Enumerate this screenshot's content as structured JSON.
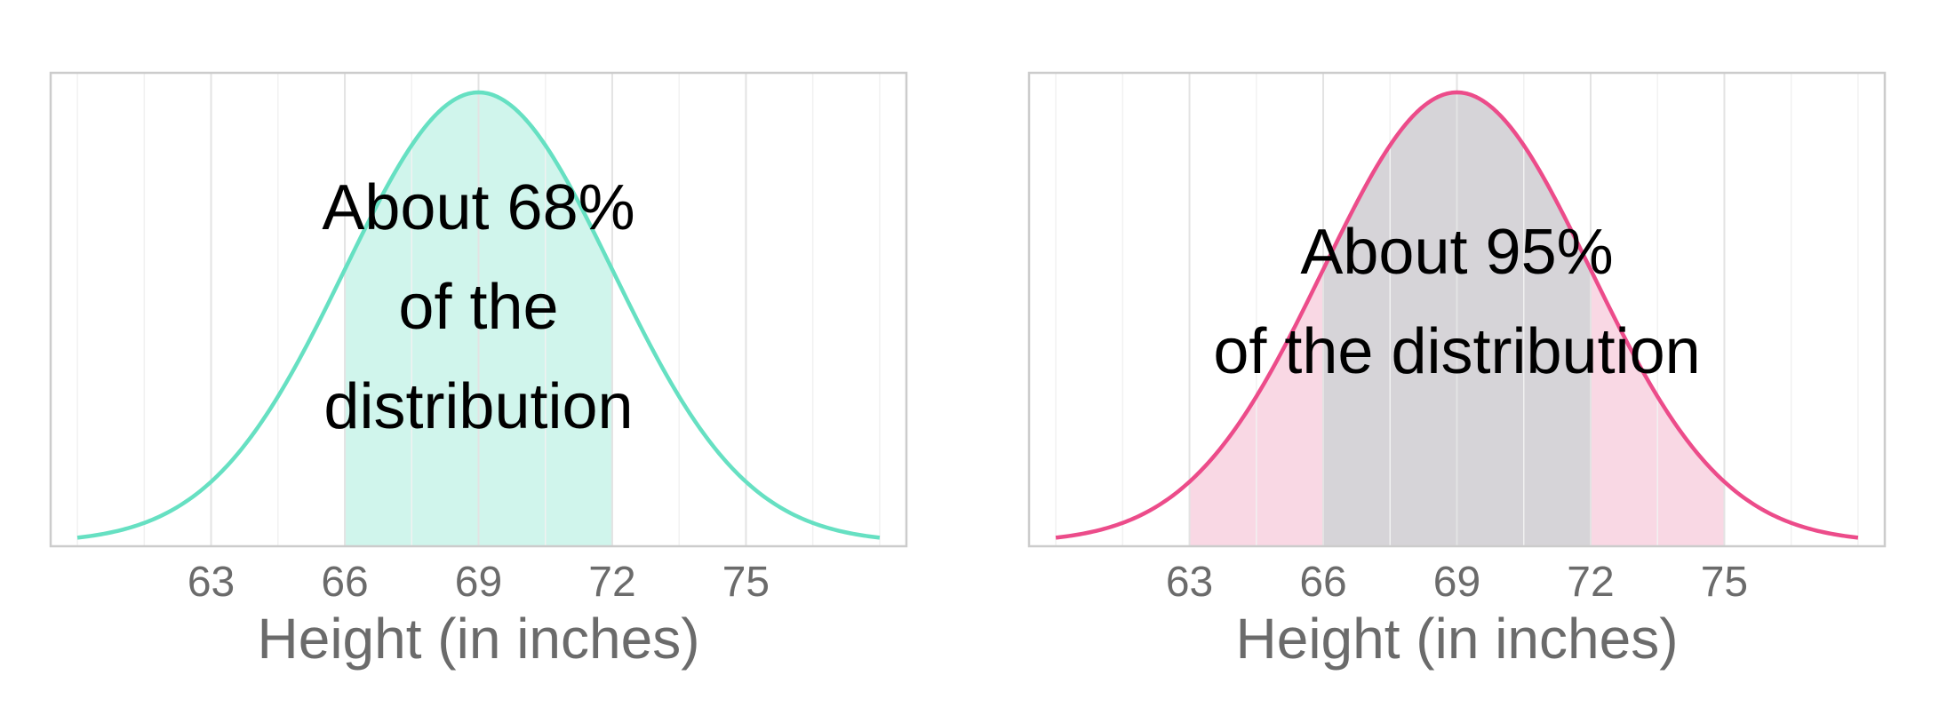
{
  "chart_data": [
    {
      "type": "area",
      "distribution": "normal",
      "mean": 69,
      "sd": 3,
      "x_range": [
        60,
        78
      ],
      "xlim": [
        59.4,
        78.6
      ],
      "xticks": [
        63,
        66,
        69,
        72,
        75
      ],
      "tick_labels": [
        "63",
        "66",
        "69",
        "72",
        "75"
      ],
      "xlabel": "Height (in inches)",
      "ylabel": "",
      "grid": true,
      "shaded_regions": [
        {
          "from": 66,
          "to": 72,
          "color": "#d0f5ec"
        }
      ],
      "annotation": [
        "About 68%",
        "of the",
        "distribution"
      ],
      "curve_color": "#66e0c2",
      "frame_color": "#cccccc"
    },
    {
      "type": "area",
      "distribution": "normal",
      "mean": 69,
      "sd": 3,
      "x_range": [
        60,
        78
      ],
      "xlim": [
        59.4,
        78.6
      ],
      "xticks": [
        63,
        66,
        69,
        72,
        75
      ],
      "tick_labels": [
        "63",
        "66",
        "69",
        "72",
        "75"
      ],
      "xlabel": "Height (in inches)",
      "ylabel": "",
      "grid": true,
      "shaded_regions": [
        {
          "from": 63,
          "to": 75,
          "color": "#f9d8e4"
        },
        {
          "from": 66,
          "to": 72,
          "color": "#d6d4d8"
        }
      ],
      "annotation": [
        "About 95%",
        "of the distribution"
      ],
      "curve_color": "#ec4c8a",
      "frame_color": "#cccccc"
    }
  ]
}
